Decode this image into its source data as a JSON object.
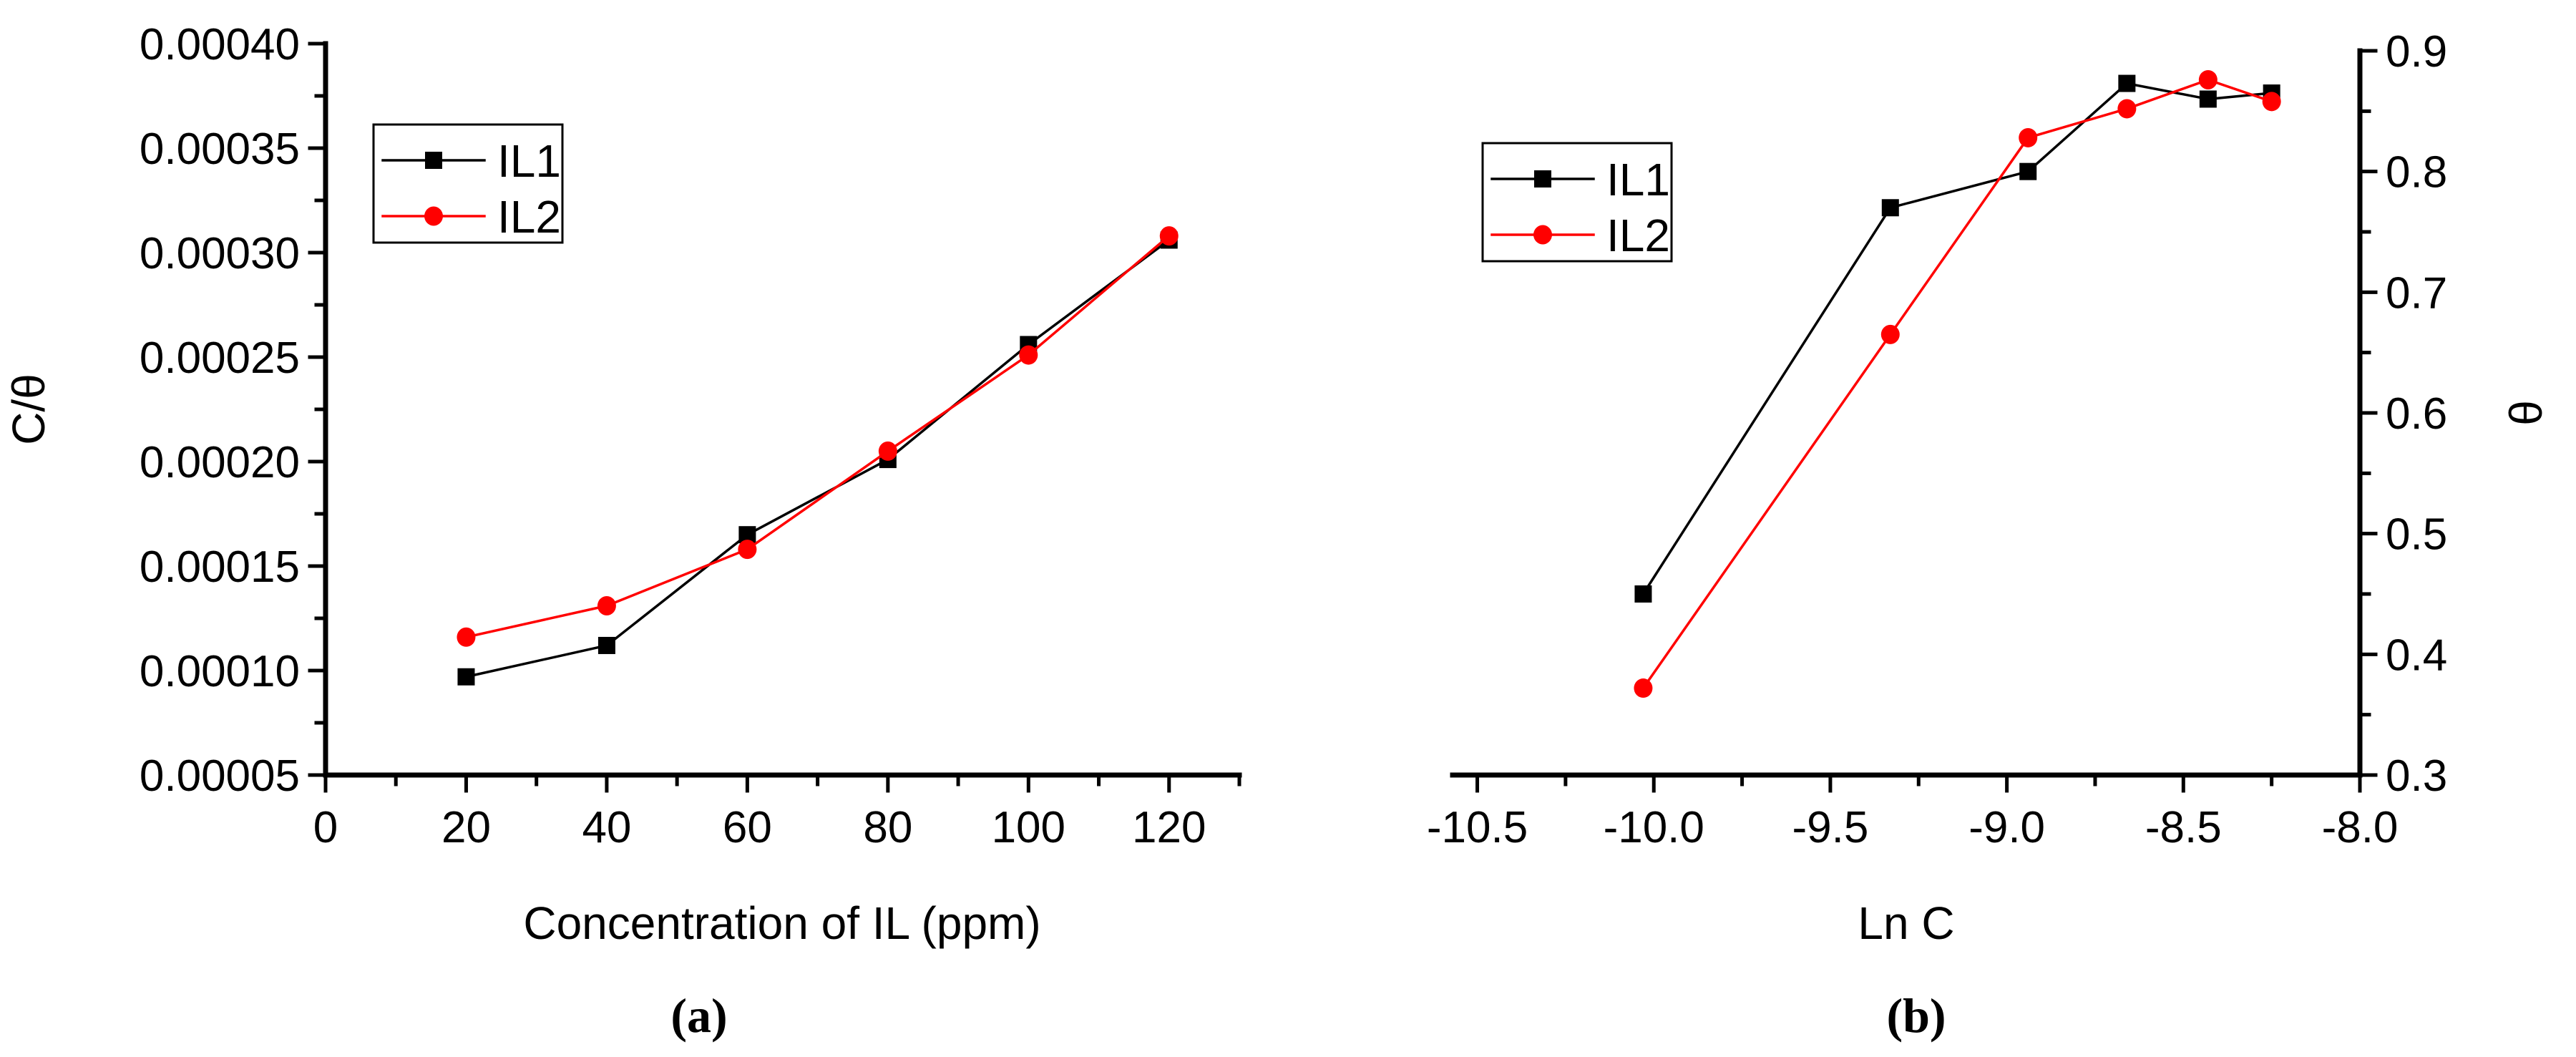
{
  "figure": {
    "background": "#ffffff",
    "text_color": "#000000",
    "axis_color": "#000000"
  },
  "chart_data": [
    {
      "id": "a",
      "type": "line",
      "caption": "(a)",
      "xlabel": "Concentration of IL (ppm)",
      "ylabel": "C/θ",
      "ylabel_side": "left",
      "xlim": [
        0,
        130
      ],
      "ylim": [
        5e-05,
        0.0004
      ],
      "grid": false,
      "legend_position": "upper-left",
      "x_major_ticks": [
        0,
        20,
        40,
        60,
        80,
        100,
        120
      ],
      "x_tick_labels": [
        "0",
        "20",
        "40",
        "60",
        "80",
        "100",
        "120"
      ],
      "x_minor_ticks": [
        10,
        30,
        50,
        70,
        90,
        110,
        130
      ],
      "y_major_ticks": [
        5e-05,
        0.0001,
        0.00015,
        0.0002,
        0.00025,
        0.0003,
        0.00035,
        0.0004
      ],
      "y_tick_labels": [
        "0.00005",
        "0.00010",
        "0.00015",
        "0.00020",
        "0.00025",
        "0.00030",
        "0.00035",
        "0.00040"
      ],
      "y_minor_ticks": [
        7.5e-05,
        0.000125,
        0.000175,
        0.000225,
        0.000275,
        0.000325,
        0.000375
      ],
      "legend_entries": [
        "IL1",
        "IL2"
      ],
      "series": [
        {
          "name": "IL1",
          "color": "#000000",
          "marker": "square",
          "x": [
            20,
            40,
            60,
            80,
            100,
            120
          ],
          "y": [
            9.7e-05,
            0.000112,
            0.000165,
            0.000201,
            0.000256,
            0.000306
          ]
        },
        {
          "name": "IL2",
          "color": "#ff0000",
          "marker": "circle",
          "x": [
            20,
            40,
            60,
            80,
            100,
            120
          ],
          "y": [
            0.000116,
            0.000131,
            0.000158,
            0.000205,
            0.000251,
            0.000308
          ]
        }
      ]
    },
    {
      "id": "b",
      "type": "line",
      "caption": "(b)",
      "xlabel": "Ln C",
      "ylabel": "θ",
      "ylabel_side": "right",
      "xlim": [
        -10.57,
        -8.0
      ],
      "ylim": [
        0.3,
        0.9
      ],
      "grid": false,
      "legend_position": "upper-left",
      "x_major_ticks": [
        -10.5,
        -10.0,
        -9.5,
        -9.0,
        -8.5,
        -8.0
      ],
      "x_tick_labels": [
        "-10.5",
        "-10.0",
        "-9.5",
        "-9.0",
        "-8.5",
        "-8.0"
      ],
      "x_minor_ticks": [
        -10.25,
        -9.75,
        -9.25,
        -8.75,
        -8.25
      ],
      "y_major_ticks": [
        0.3,
        0.4,
        0.5,
        0.6,
        0.7,
        0.8,
        0.9
      ],
      "y_tick_labels": [
        "0.3",
        "0.4",
        "0.5",
        "0.6",
        "0.7",
        "0.8",
        "0.9"
      ],
      "y_minor_ticks": [
        0.35,
        0.45,
        0.55,
        0.65,
        0.75,
        0.85
      ],
      "legend_entries": [
        "IL1",
        "IL2"
      ],
      "series": [
        {
          "name": "IL1",
          "color": "#000000",
          "marker": "square",
          "x": [
            -10.03,
            -9.33,
            -8.94,
            -8.66,
            -8.43,
            -8.25
          ],
          "y": [
            0.45,
            0.77,
            0.8,
            0.873,
            0.86,
            0.865
          ]
        },
        {
          "name": "IL2",
          "color": "#ff0000",
          "marker": "circle",
          "x": [
            -10.03,
            -9.33,
            -8.94,
            -8.66,
            -8.43,
            -8.25
          ],
          "y": [
            0.372,
            0.665,
            0.828,
            0.852,
            0.876,
            0.858
          ]
        }
      ]
    }
  ]
}
